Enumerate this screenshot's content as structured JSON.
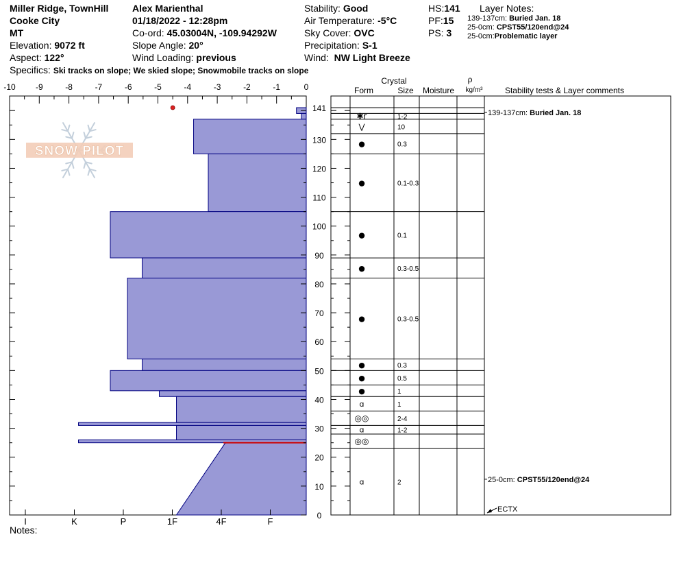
{
  "header": {
    "location": "Miller Ridge, TownHill",
    "region": "Cooke City",
    "state": "MT",
    "elevation_label": "Elevation:",
    "elevation": "9072 ft",
    "aspect_label": "Aspect:",
    "aspect": "122°",
    "observer": "Alex Marienthal",
    "datetime": "01/18/2022 - 12:28pm",
    "coord_label": "Co-ord:",
    "coord": "45.03004N, -109.94292W",
    "slope_label": "Slope Angle:",
    "slope": "20°",
    "wind_loading_label": "Wind Loading:",
    "wind_loading": "previous",
    "stability_label": "Stability:",
    "stability": "Good",
    "air_temp_label": "Air Temperature:",
    "air_temp": "-5°C",
    "sky_label": "Sky Cover:",
    "sky": "OVC",
    "precip_label": "Precipitation:",
    "precip": "S-1",
    "wind_label": "Wind:",
    "wind": "NW Light Breeze",
    "hs_label": "HS:",
    "hs": "141",
    "pf_label": "PF:",
    "pf": "15",
    "ps_label": "PS:",
    "ps": "3",
    "layer_notes_title": "Layer Notes:",
    "layer_notes": [
      {
        "range": "139-137cm:",
        "text": "Buried Jan. 18"
      },
      {
        "range": "25-0cm:",
        "text": "CPST55/120end@24"
      },
      {
        "range": "25-0cm:",
        "text": "Problematic layer"
      }
    ],
    "specifics_label": "Specifics:",
    "specifics": "Ski tracks on slope; We skied slope; Snowmobile tracks on slope"
  },
  "watermark": "SNOW PILOT",
  "notes_label": "Notes:",
  "chart_data": {
    "type": "snow-profile",
    "temperature_axis": {
      "ticks": [
        "-10",
        "-9",
        "-8",
        "-7",
        "-6",
        "-5",
        "-4",
        "-3",
        "-2",
        "-1",
        "0"
      ],
      "range": [
        -10,
        0
      ]
    },
    "hardness_axis": {
      "ticks": [
        "I",
        "K",
        "P",
        "1F",
        "4F",
        "F"
      ]
    },
    "depth_axis": {
      "range": [
        0,
        141
      ],
      "ticks": [
        "0",
        "10",
        "20",
        "30",
        "40",
        "50",
        "60",
        "70",
        "80",
        "90",
        "100",
        "110",
        "120",
        "130",
        "141"
      ]
    },
    "temperature_points": [
      {
        "depth": 141,
        "temp": -4.5
      }
    ],
    "hardness_layers": [
      {
        "top": 141,
        "bottom": 139,
        "hardness": 0.2
      },
      {
        "top": 139,
        "bottom": 137,
        "hardness": 0.1
      },
      {
        "top": 137,
        "bottom": 125,
        "hardness": 2.3
      },
      {
        "top": 125,
        "bottom": 105,
        "hardness": 2.0
      },
      {
        "top": 105,
        "bottom": 89,
        "hardness": 4.0
      },
      {
        "top": 89,
        "bottom": 82,
        "hardness": 3.35
      },
      {
        "top": 82,
        "bottom": 54,
        "hardness": 3.65
      },
      {
        "top": 54,
        "bottom": 50,
        "hardness": 3.35
      },
      {
        "top": 50,
        "bottom": 43,
        "hardness": 4.0
      },
      {
        "top": 43,
        "bottom": 41,
        "hardness": 3.0
      },
      {
        "top": 41,
        "bottom": 32,
        "hardness": 2.65
      },
      {
        "top": 32,
        "bottom": 31,
        "hardness": 4.65
      },
      {
        "top": 31,
        "bottom": 26,
        "hardness": 2.65
      },
      {
        "top": 26,
        "bottom": 25,
        "hardness": 4.65
      },
      {
        "top": 25,
        "bottom": 0,
        "hardness": 1.65,
        "hardness_bottom": 2.65
      }
    ],
    "red_line_depth": 25,
    "column_headers": {
      "crystal": "Crystal",
      "form": "Form",
      "size": "Size",
      "moisture": "Moisture",
      "rho": "ρ",
      "rho_unit": "kg/m³",
      "comments": "Stability tests & Layer comments"
    },
    "layers": [
      {
        "top": 141,
        "bottom": 139,
        "form": "",
        "size": ""
      },
      {
        "top": 139,
        "bottom": 137,
        "form": "✱r",
        "size": "1-2"
      },
      {
        "top": 137,
        "bottom": 132,
        "form": "⋁",
        "size": "10"
      },
      {
        "top": 132,
        "bottom": 125,
        "form": "●",
        "size": "0.3"
      },
      {
        "top": 125,
        "bottom": 105,
        "form": "●",
        "size": "0.1-0.3"
      },
      {
        "top": 105,
        "bottom": 89,
        "form": "●",
        "size": "0.1"
      },
      {
        "top": 89,
        "bottom": 82,
        "form": "●",
        "size": "0.3-0.5"
      },
      {
        "top": 82,
        "bottom": 54,
        "form": "●",
        "size": "0.3-0.5"
      },
      {
        "top": 54,
        "bottom": 50,
        "form": "●",
        "size": "0.3"
      },
      {
        "top": 50,
        "bottom": 45,
        "form": "●",
        "size": "0.5"
      },
      {
        "top": 45,
        "bottom": 41,
        "form": "●",
        "size": "1"
      },
      {
        "top": 41,
        "bottom": 36,
        "form": "ɑ",
        "size": "1"
      },
      {
        "top": 36,
        "bottom": 31,
        "form": "◎◎",
        "size": "2-4"
      },
      {
        "top": 31,
        "bottom": 28,
        "form": "ɑ",
        "size": "1-2"
      },
      {
        "top": 28,
        "bottom": 23,
        "form": "◎◎",
        "size": ""
      },
      {
        "top": 23,
        "bottom": 0,
        "form": "ɑ",
        "size": "2"
      }
    ],
    "comments": [
      {
        "depth": 137,
        "range": "139-137cm:",
        "text": "Buried Jan. 18"
      },
      {
        "depth": 10,
        "range": "25-0cm:",
        "text": "CPST55/120end@24"
      }
    ],
    "test_marker": {
      "depth": 0,
      "label": "ECTX"
    }
  }
}
